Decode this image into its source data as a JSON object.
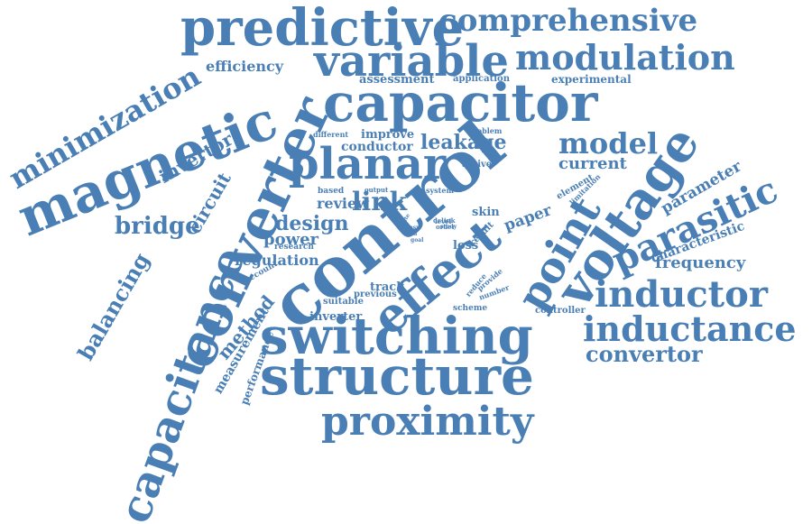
{
  "palette": {
    "word_color": "#4a7fb5",
    "background": "#ffffff"
  },
  "words": [
    {
      "id": "predictive",
      "text": "predictive",
      "rotation": 0
    },
    {
      "id": "comprehensive",
      "text": "comprehensive",
      "rotation": 0
    },
    {
      "id": "variable",
      "text": "variable",
      "rotation": 0
    },
    {
      "id": "modulation",
      "text": "modulation",
      "rotation": 0
    },
    {
      "id": "minimization",
      "text": "minimization",
      "rotation": -30
    },
    {
      "id": "efficiency",
      "text": "efficiency",
      "rotation": 0
    },
    {
      "id": "assessment",
      "text": "assessment",
      "rotation": 0
    },
    {
      "id": "application",
      "text": "application",
      "rotation": 0
    },
    {
      "id": "experimental",
      "text": "experimental",
      "rotation": 0
    },
    {
      "id": "capacitor",
      "text": "capacitor",
      "rotation": 0
    },
    {
      "id": "magnetic",
      "text": "magnetic",
      "rotation": -22
    },
    {
      "id": "converter",
      "text": "converter",
      "rotation": -65
    },
    {
      "id": "different",
      "text": "different",
      "rotation": 0
    },
    {
      "id": "problem",
      "text": "problem",
      "rotation": 0
    },
    {
      "id": "improve",
      "text": "improve",
      "rotation": 0
    },
    {
      "id": "conductor",
      "text": "conductor",
      "rotation": 0
    },
    {
      "id": "leakage",
      "text": "leakage",
      "rotation": 0
    },
    {
      "id": "model",
      "text": "model",
      "rotation": 0
    },
    {
      "id": "invertor",
      "text": "invertor",
      "rotation": -30
    },
    {
      "id": "planar",
      "text": "planar",
      "rotation": 0
    },
    {
      "id": "current",
      "text": "current",
      "rotation": 0
    },
    {
      "id": "active",
      "text": "active",
      "rotation": 0
    },
    {
      "id": "circuit",
      "text": "circuit",
      "rotation": -60
    },
    {
      "id": "based",
      "text": "based",
      "rotation": 0
    },
    {
      "id": "output",
      "text": "output",
      "rotation": 0
    },
    {
      "id": "system",
      "text": "system",
      "rotation": 0
    },
    {
      "id": "element",
      "text": "element",
      "rotation": -30
    },
    {
      "id": "limitation",
      "text": "limitation",
      "rotation": -45
    },
    {
      "id": "parameter",
      "text": "parameter",
      "rotation": -30
    },
    {
      "id": "review",
      "text": "review",
      "rotation": 0
    },
    {
      "id": "link",
      "text": "link",
      "rotation": 0
    },
    {
      "id": "control",
      "text": "control",
      "rotation": -40
    },
    {
      "id": "skin",
      "text": "skin",
      "rotation": 0
    },
    {
      "id": "paper",
      "text": "paper",
      "rotation": -20
    },
    {
      "id": "voltage",
      "text": "voltage",
      "rotation": -55
    },
    {
      "id": "parasitic",
      "text": "parasitic",
      "rotation": -25
    },
    {
      "id": "bridge",
      "text": "bridge",
      "rotation": 0
    },
    {
      "id": "design",
      "text": "design",
      "rotation": 0
    },
    {
      "id": "state",
      "text": "state",
      "rotation": -60
    },
    {
      "id": "dclink",
      "text": "dclink",
      "rotation": 0
    },
    {
      "id": "order",
      "text": "order",
      "rotation": 0
    },
    {
      "id": "level",
      "text": "level",
      "rotation": 0
    },
    {
      "id": "study",
      "text": "study",
      "rotation": 0
    },
    {
      "id": "easy",
      "text": "easy",
      "rotation": 0
    },
    {
      "id": "load",
      "text": "load",
      "rotation": 0
    },
    {
      "id": "goal",
      "text": "goal",
      "rotation": 0
    },
    {
      "id": "result",
      "text": "result",
      "rotation": -45
    },
    {
      "id": "characteristic",
      "text": "characteristic",
      "rotation": -20
    },
    {
      "id": "power",
      "text": "power",
      "rotation": 0
    },
    {
      "id": "research",
      "text": "research",
      "rotation": 0
    },
    {
      "id": "loss",
      "text": "loss",
      "rotation": 0
    },
    {
      "id": "regulation",
      "text": "regulation",
      "rotation": 0
    },
    {
      "id": "frequency",
      "text": "frequency",
      "rotation": 0
    },
    {
      "id": "effect",
      "text": "effect",
      "rotation": -40
    },
    {
      "id": "point",
      "text": "point",
      "rotation": -60
    },
    {
      "id": "balancing",
      "text": "balancing",
      "rotation": -60
    },
    {
      "id": "capacitance",
      "text": "capacitance",
      "rotation": -70
    },
    {
      "id": "account",
      "text": "account",
      "rotation": -30
    },
    {
      "id": "track",
      "text": "track",
      "rotation": 0
    },
    {
      "id": "reduce",
      "text": "reduce",
      "rotation": -50
    },
    {
      "id": "provide",
      "text": "provide",
      "rotation": -40
    },
    {
      "id": "number",
      "text": "number",
      "rotation": -20
    },
    {
      "id": "previous",
      "text": "previous",
      "rotation": 0
    },
    {
      "id": "suitable",
      "text": "suitable",
      "rotation": 0
    },
    {
      "id": "inductor",
      "text": "inductor",
      "rotation": 0
    },
    {
      "id": "method",
      "text": "method",
      "rotation": -50
    },
    {
      "id": "scheme",
      "text": "scheme",
      "rotation": 0
    },
    {
      "id": "controller",
      "text": "controller",
      "rotation": 0
    },
    {
      "id": "inverter",
      "text": "inverter",
      "rotation": 0
    },
    {
      "id": "switching",
      "text": "switching",
      "rotation": 0
    },
    {
      "id": "inductance",
      "text": "inductance",
      "rotation": 0
    },
    {
      "id": "measurement",
      "text": "measurement",
      "rotation": -60
    },
    {
      "id": "performance",
      "text": "performance",
      "rotation": -70
    },
    {
      "id": "convertor",
      "text": "convertor",
      "rotation": 0
    },
    {
      "id": "structure",
      "text": "structure",
      "rotation": 0
    },
    {
      "id": "proximity",
      "text": "proximity",
      "rotation": 0
    }
  ]
}
